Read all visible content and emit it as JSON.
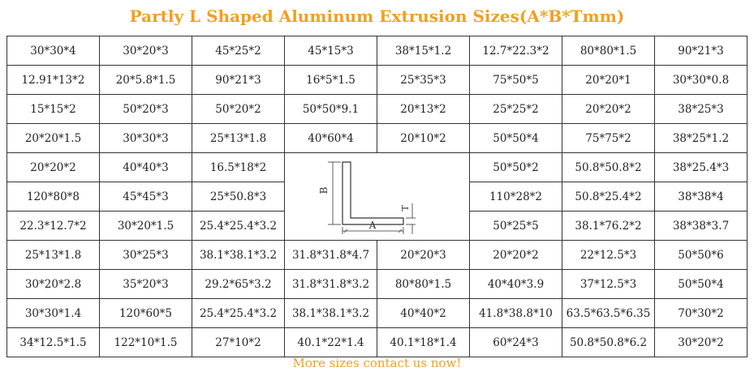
{
  "title": "Partly L Shaped Aluminum Extrusion Sizes(A*B*Tmm)",
  "footer": "More sizes contact us now!",
  "diagram": {
    "label_a": "A",
    "label_b": "B",
    "label_t": "T"
  },
  "rows": [
    [
      "30*30*4",
      "30*20*3",
      "45*25*2",
      "45*15*3",
      "38*15*1.2",
      "12.7*22.3*2",
      "80*80*1.5",
      "90*21*3"
    ],
    [
      "12.91*13*2",
      "20*5.8*1.5",
      "90*21*3",
      "16*5*1.5",
      "25*35*3",
      "75*50*5",
      "20*20*1",
      "30*30*0.8"
    ],
    [
      "15*15*2",
      "50*20*3",
      "50*20*2",
      "50*50*9.1",
      "20*13*2",
      "25*25*2",
      "20*20*2",
      "38*25*3"
    ],
    [
      "20*20*1.5",
      "30*30*3",
      "25*13*1.8",
      "40*60*4",
      "20*10*2",
      "50*50*4",
      "75*75*2",
      "38*25*1.2"
    ],
    [
      "20*20*2",
      "40*40*3",
      "16.5*18*2",
      "50*50*2",
      "50.8*50.8*2",
      "38*25.4*3"
    ],
    [
      "120*80*8",
      "45*45*3",
      "25*50.8*3",
      "110*28*2",
      "50.8*25.4*2",
      "38*38*4"
    ],
    [
      "22.3*12.7*2",
      "30*20*1.5",
      "25.4*25.4*3.2",
      "50*25*5",
      "38.1*76.2*2",
      "38*38*3.7"
    ],
    [
      "25*13*1.8",
      "30*25*3",
      "38.1*38.1*3.2",
      "31.8*31.8*4.7",
      "20*20*3",
      "20*20*2",
      "22*12.5*3",
      "50*50*6"
    ],
    [
      "30*20*2.8",
      "35*20*3",
      "29.2*65*3.2",
      "31.8*31.8*3.2",
      "80*80*1.5",
      "40*40*3.9",
      "37*12.5*3",
      "50*50*4"
    ],
    [
      "30*30*1.4",
      "120*60*5",
      "25.4*25.4*3.2",
      "38.1*38.1*3.2",
      "40*40*2",
      "41.8*38.8*10",
      "63.5*63.5*6.35",
      "70*30*2"
    ],
    [
      "34*12.5*1.5",
      "122*10*1.5",
      "27*10*2",
      "40.1*22*1.4",
      "40.1*18*1.4",
      "60*24*3",
      "50.8*50.8*6.2",
      "30*20*2"
    ]
  ]
}
